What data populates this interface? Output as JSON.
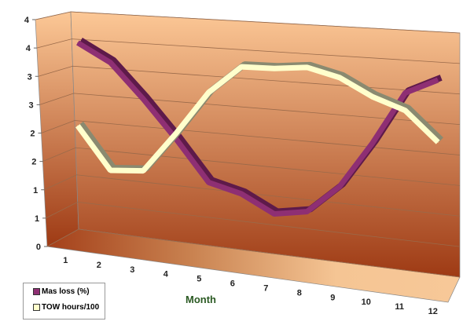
{
  "chart_data": {
    "type": "line",
    "title": "",
    "xlabel": "Month",
    "ylabel": "",
    "categories": [
      "1",
      "2",
      "3",
      "4",
      "5",
      "6",
      "7",
      "8",
      "9",
      "10",
      "11",
      "12"
    ],
    "ytick_labels": [
      "0",
      "1",
      "1",
      "2",
      "2",
      "3",
      "3",
      "4",
      "4"
    ],
    "ylim": [
      0,
      4
    ],
    "grid": true,
    "legend_position": "bottom-left",
    "series": [
      {
        "name": "Mas loss (%)",
        "color": "#8e2f73",
        "values": [
          3.8,
          3.45,
          2.8,
          2.1,
          1.35,
          1.2,
          0.9,
          1.0,
          1.5,
          2.3,
          3.2,
          3.45
        ]
      },
      {
        "name": "TOW hours/100",
        "color": "#ffffcc",
        "values": [
          2.2,
          1.4,
          1.45,
          2.2,
          3.0,
          3.5,
          3.5,
          3.55,
          3.4,
          3.1,
          2.9,
          2.4
        ]
      }
    ]
  }
}
